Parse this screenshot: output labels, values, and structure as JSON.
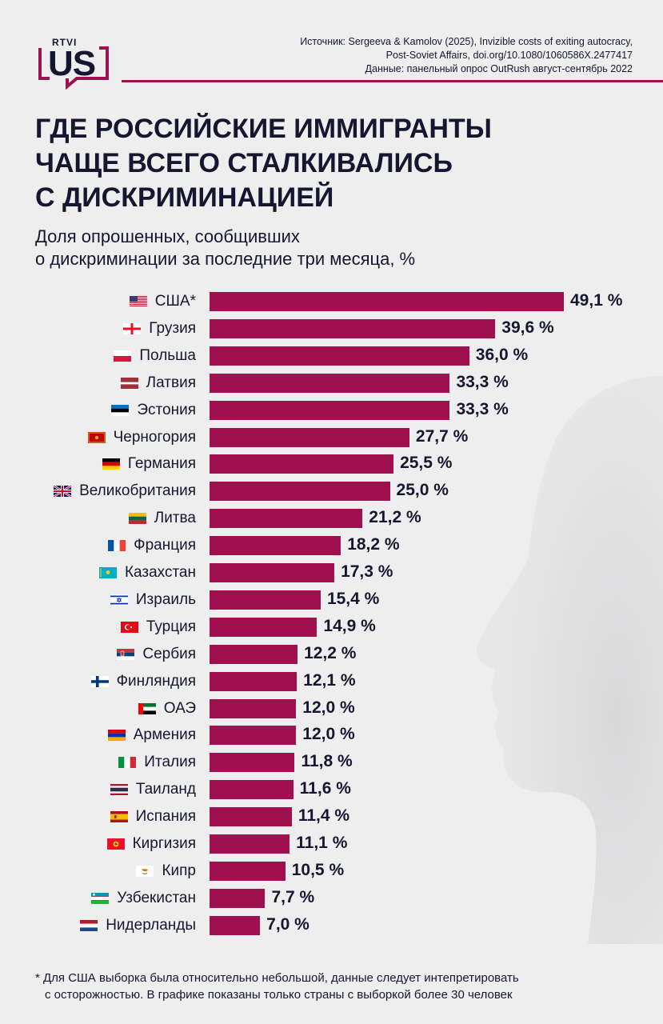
{
  "header": {
    "logo_small": "RTVI",
    "logo_main": "US",
    "source_lines": [
      "Источник: Sergeeva & Kamolov (2025), Invizible costs of exiting autocracy,",
      "Post-Soviet Affairs, doi.org/10.1080/1060586X.2477417",
      "Данные: панельный опрос OutRush август-сентябрь 2022"
    ]
  },
  "title_lines": [
    "Где российские иммигранты",
    "чаще всего сталкивались",
    "с дискриминацией"
  ],
  "subtitle_lines": [
    "Доля опрошенных, сообщивших",
    "о дискриминации за последние три месяца, %"
  ],
  "colors": {
    "accent": "#a0104f",
    "text": "#14172f",
    "background": "#efeeee"
  },
  "chart_data": {
    "type": "bar",
    "orientation": "horizontal",
    "unit": "%",
    "xlim": [
      0,
      50
    ],
    "categories": [
      "США*",
      "Грузия",
      "Польша",
      "Латвия",
      "Эстония",
      "Черногория",
      "Германия",
      "Великобритания",
      "Литва",
      "Франция",
      "Казахстан",
      "Израиль",
      "Турция",
      "Сербия",
      "Финляндия",
      "ОАЭ",
      "Армения",
      "Италия",
      "Таиланд",
      "Испания",
      "Киргизия",
      "Кипр",
      "Узбекистан",
      "Нидерланды"
    ],
    "values": [
      49.1,
      39.6,
      36.0,
      33.3,
      33.3,
      27.7,
      25.5,
      25.0,
      21.2,
      18.2,
      17.3,
      15.4,
      14.9,
      12.2,
      12.1,
      12.0,
      12.0,
      11.8,
      11.6,
      11.4,
      11.1,
      10.5,
      7.7,
      7.0
    ],
    "value_labels": [
      "49,1 %",
      "39,6 %",
      "36,0 %",
      "33,3 %",
      "33,3 %",
      "27,7 %",
      "25,5 %",
      "25,0 %",
      "21,2 %",
      "18,2 %",
      "17,3 %",
      "15,4 %",
      "14,9 %",
      "12,2 %",
      "12,1 %",
      "12,0 %",
      "12,0 %",
      "11,8 %",
      "11,6 %",
      "11,4 %",
      "11,1 %",
      "10,5 %",
      "7,7 %",
      "7,0 %"
    ],
    "flag_icons": [
      "flag-us-icon",
      "flag-ge-icon",
      "flag-pl-icon",
      "flag-lv-icon",
      "flag-ee-icon",
      "flag-me-icon",
      "flag-de-icon",
      "flag-gb-icon",
      "flag-lt-icon",
      "flag-fr-icon",
      "flag-kz-icon",
      "flag-il-icon",
      "flag-tr-icon",
      "flag-rs-icon",
      "flag-fi-icon",
      "flag-ae-icon",
      "flag-am-icon",
      "flag-it-icon",
      "flag-th-icon",
      "flag-es-icon",
      "flag-kg-icon",
      "flag-cy-icon",
      "flag-uz-icon",
      "flag-nl-icon"
    ],
    "bar_color": "#a0104f",
    "grid": false,
    "legend": "none"
  },
  "footnote_lines": [
    "* Для США  выборка была относительно небольшой, данные следует интепретировать",
    "с осторожностью. В графике показаны только страны с выборкой более 30 человек"
  ]
}
